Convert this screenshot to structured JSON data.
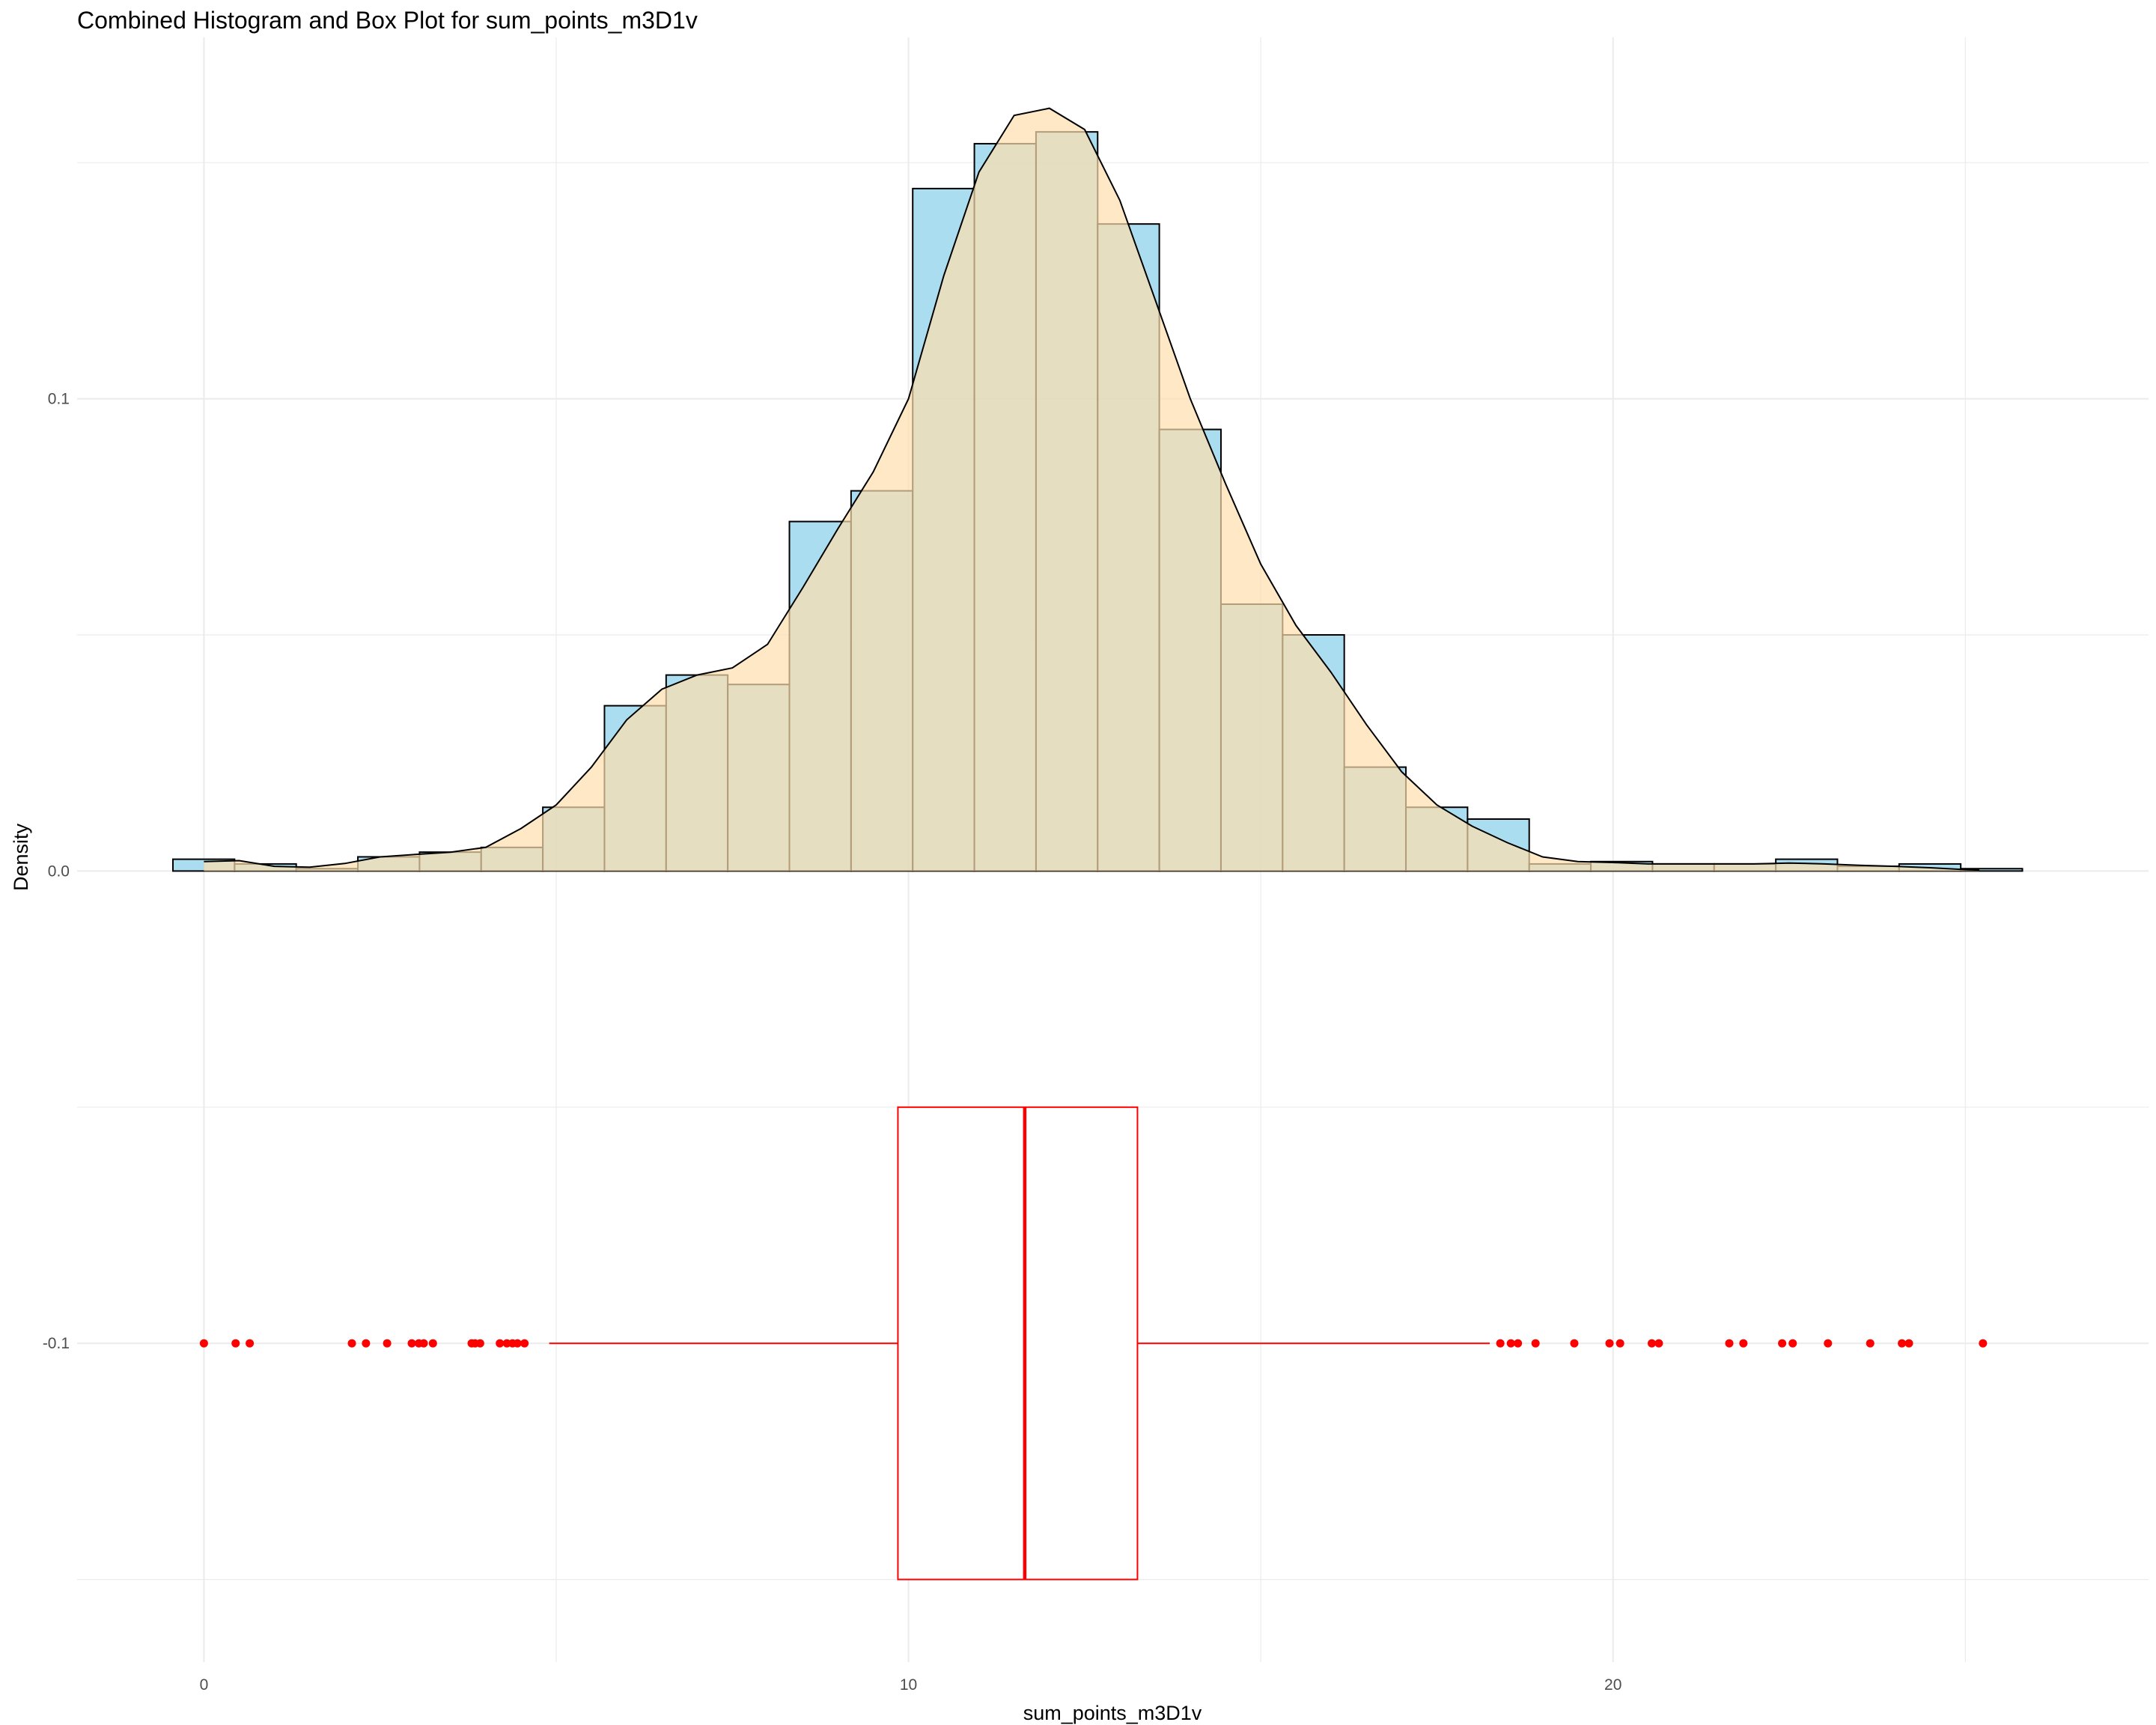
{
  "chart_data": {
    "type": "histogram+density+boxplot",
    "title": "Combined Histogram and Box Plot for sum_points_m3D1v",
    "xlabel": "sum_points_m3D1v",
    "ylabel": "Density",
    "xlim": [
      -1.8,
      27.6
    ],
    "ylim": [
      -0.1675,
      0.1765
    ],
    "x_ticks": [
      0,
      10,
      20
    ],
    "y_ticks": [
      -0.1,
      0.0,
      0.1
    ],
    "x_tick_labels": [
      "0",
      "10",
      "20"
    ],
    "y_tick_labels": [
      "-0.1",
      "0.0",
      "0.1"
    ],
    "grid": true,
    "histogram": {
      "bin_width": 0.875,
      "bins": [
        {
          "x0": -0.44,
          "density": 0.0025
        },
        {
          "x0": 0.435,
          "density": 0.0015
        },
        {
          "x0": 1.31,
          "density": 0.0005
        },
        {
          "x0": 2.185,
          "density": 0.003
        },
        {
          "x0": 3.06,
          "density": 0.004
        },
        {
          "x0": 3.935,
          "density": 0.005
        },
        {
          "x0": 4.81,
          "density": 0.0135
        },
        {
          "x0": 5.685,
          "density": 0.035
        },
        {
          "x0": 6.56,
          "density": 0.0415
        },
        {
          "x0": 7.435,
          "density": 0.0395
        },
        {
          "x0": 8.31,
          "density": 0.074
        },
        {
          "x0": 9.185,
          "density": 0.0805
        },
        {
          "x0": 10.06,
          "density": 0.1445
        },
        {
          "x0": 10.935,
          "density": 0.154
        },
        {
          "x0": 11.81,
          "density": 0.1565
        },
        {
          "x0": 12.685,
          "density": 0.137
        },
        {
          "x0": 13.56,
          "density": 0.0935
        },
        {
          "x0": 14.435,
          "density": 0.0565
        },
        {
          "x0": 15.31,
          "density": 0.05
        },
        {
          "x0": 16.185,
          "density": 0.022
        },
        {
          "x0": 17.06,
          "density": 0.0135
        },
        {
          "x0": 17.935,
          "density": 0.011
        },
        {
          "x0": 18.81,
          "density": 0.0015
        },
        {
          "x0": 19.685,
          "density": 0.002
        },
        {
          "x0": 20.56,
          "density": 0.0015
        },
        {
          "x0": 21.435,
          "density": 0.0015
        },
        {
          "x0": 22.31,
          "density": 0.0025
        },
        {
          "x0": 23.185,
          "density": 0.001
        },
        {
          "x0": 24.06,
          "density": 0.0015
        },
        {
          "x0": 24.935,
          "density": 0.0005
        }
      ]
    },
    "density_curve": {
      "x": [
        0,
        0.5,
        1,
        1.5,
        2,
        2.5,
        3,
        3.5,
        4,
        4.5,
        5,
        5.5,
        6,
        6.5,
        7,
        7.5,
        8,
        8.5,
        9,
        9.5,
        10,
        10.5,
        11,
        11.5,
        12,
        12.5,
        13,
        13.5,
        14,
        14.5,
        15,
        15.5,
        16,
        16.5,
        17,
        17.5,
        18,
        18.5,
        19,
        19.5,
        20,
        20.5,
        21,
        21.5,
        22,
        22.5,
        23,
        23.5,
        24,
        24.5,
        25,
        25.2
      ],
      "y": [
        0.002,
        0.0022,
        0.001,
        0.0008,
        0.0016,
        0.003,
        0.0035,
        0.004,
        0.005,
        0.009,
        0.014,
        0.022,
        0.032,
        0.0385,
        0.0415,
        0.043,
        0.048,
        0.06,
        0.0725,
        0.0845,
        0.1,
        0.126,
        0.148,
        0.16,
        0.1615,
        0.157,
        0.142,
        0.121,
        0.1,
        0.082,
        0.065,
        0.052,
        0.042,
        0.031,
        0.021,
        0.014,
        0.0095,
        0.006,
        0.003,
        0.002,
        0.0018,
        0.0015,
        0.0015,
        0.0015,
        0.0015,
        0.0017,
        0.0015,
        0.0012,
        0.001,
        0.0007,
        0.0003,
        0.0002
      ]
    },
    "boxplot": {
      "y": -0.1,
      "half_height": 0.05,
      "q1": 9.85,
      "median": 11.65,
      "q3": 13.25,
      "whisker_low": 4.9,
      "whisker_high": 18.25,
      "outliers": [
        0.0,
        0.45,
        0.65,
        2.1,
        2.3,
        2.6,
        2.95,
        3.05,
        3.12,
        3.25,
        3.8,
        3.85,
        3.92,
        4.2,
        4.3,
        4.38,
        4.45,
        4.55,
        18.4,
        18.55,
        18.65,
        18.9,
        19.45,
        19.95,
        20.1,
        20.55,
        20.65,
        21.65,
        21.85,
        22.4,
        22.55,
        23.05,
        23.65,
        24.1,
        24.2,
        25.25
      ],
      "color": "#ff0000"
    },
    "colors": {
      "histogram_fill": "#87ceeb",
      "density_fill": "#ffdead",
      "outline": "#000000",
      "box": "#ff0000",
      "grid": "#ebebeb"
    }
  }
}
